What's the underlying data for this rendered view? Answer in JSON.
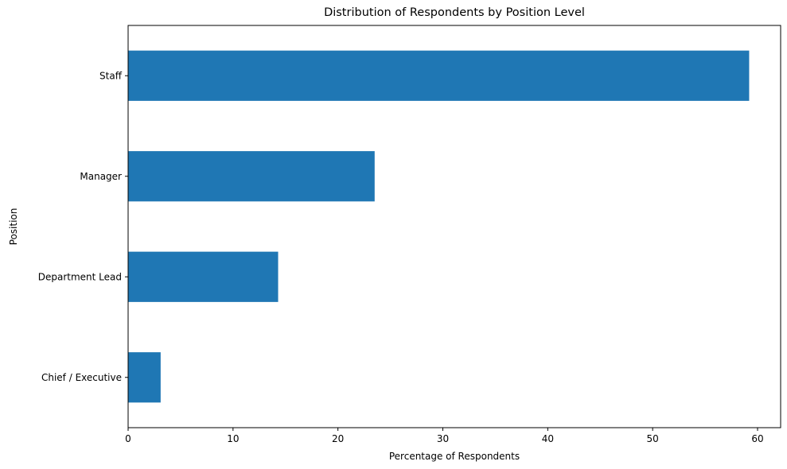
{
  "chart_data": {
    "type": "bar",
    "orientation": "horizontal",
    "title": "Distribution of Respondents by Position Level",
    "xlabel": "Percentage of Respondents",
    "ylabel": "Position",
    "categories": [
      "Chief / Executive",
      "Department Lead",
      "Manager",
      "Staff"
    ],
    "values": [
      3.1,
      14.3,
      23.5,
      59.2
    ],
    "xlim": [
      0,
      62.2
    ],
    "xticks": [
      0,
      10,
      20,
      30,
      40,
      50,
      60
    ],
    "grid": false,
    "legend": "none",
    "bar_color": "#1f77b4"
  }
}
